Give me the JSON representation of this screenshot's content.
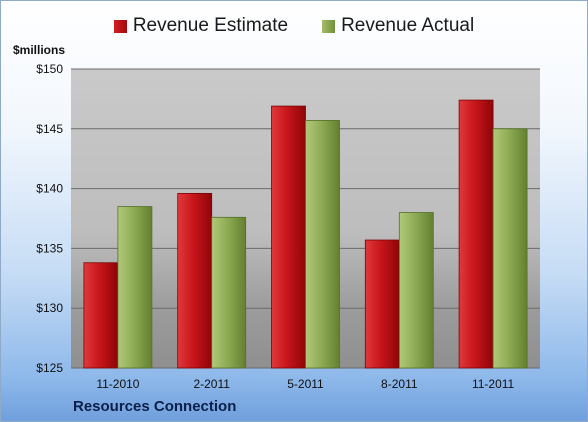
{
  "chart_data": {
    "type": "bar",
    "categories": [
      "11-2010",
      "2-2011",
      "5-2011",
      "8-2011",
      "11-2011"
    ],
    "series": [
      {
        "name": "Revenue Estimate",
        "color": "#c8161b",
        "values": [
          133.8,
          139.6,
          146.9,
          135.7,
          147.4
        ]
      },
      {
        "name": "Revenue Actual",
        "color": "#8fac55",
        "values": [
          138.5,
          137.6,
          145.7,
          138.0,
          145.0
        ]
      }
    ],
    "ylabel": "$millions",
    "ylim": [
      125,
      150
    ],
    "yticks": [
      125,
      130,
      135,
      140,
      145,
      150
    ],
    "ytick_labels": [
      "$125",
      "$130",
      "$135",
      "$140",
      "$145",
      "$150"
    ],
    "grid": true,
    "legend_position": "top"
  },
  "footer": {
    "company": "Resources Connection"
  }
}
